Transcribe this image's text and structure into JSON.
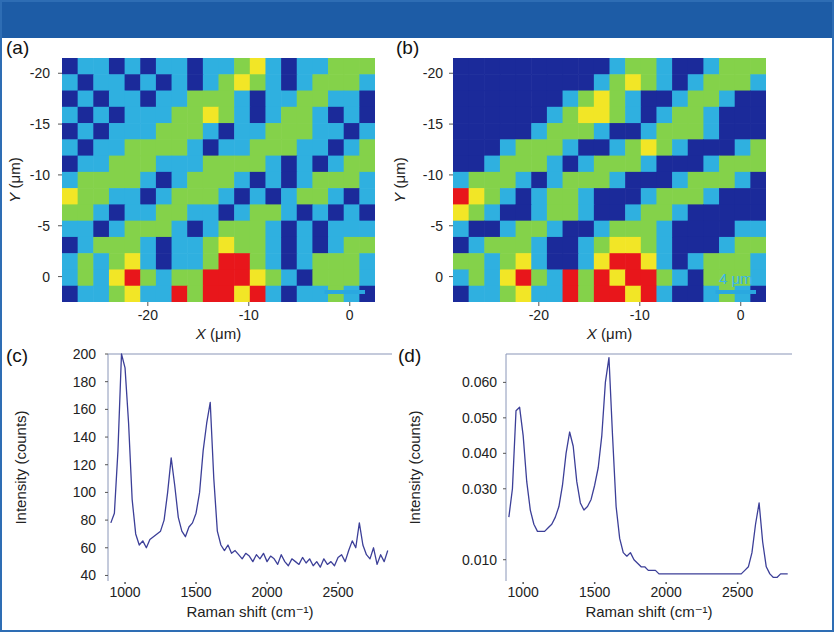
{
  "chart_data": [
    {
      "type": "heatmap",
      "panel_label": "(a)",
      "xlabel": "X (μm)",
      "ylabel": "Y (μm)",
      "xlim": [
        -28.5,
        2.5
      ],
      "ylim": [
        -21.5,
        2.5
      ],
      "xticks": [
        -20,
        -10,
        0
      ],
      "yticks": [
        -20,
        -15,
        -10,
        -5,
        0
      ],
      "colors": [
        "#1b2a9a",
        "#2fb0e0",
        "#84d24a",
        "#f2e626",
        "#e8161b"
      ],
      "cells": [
        [
          0,
          1,
          1,
          0,
          1,
          0,
          1,
          1,
          0,
          1,
          1,
          2,
          3,
          1,
          0,
          1,
          1,
          2,
          2,
          2
        ],
        [
          1,
          0,
          1,
          1,
          0,
          1,
          0,
          1,
          0,
          1,
          2,
          3,
          2,
          1,
          0,
          1,
          2,
          2,
          2,
          1
        ],
        [
          0,
          1,
          0,
          1,
          1,
          0,
          1,
          1,
          2,
          2,
          2,
          1,
          0,
          1,
          1,
          2,
          2,
          1,
          1,
          0
        ],
        [
          1,
          0,
          1,
          0,
          1,
          1,
          1,
          2,
          2,
          3,
          2,
          1,
          0,
          1,
          2,
          2,
          1,
          0,
          1,
          0
        ],
        [
          0,
          1,
          0,
          1,
          1,
          1,
          2,
          2,
          2,
          1,
          0,
          1,
          1,
          2,
          2,
          2,
          1,
          1,
          0,
          1
        ],
        [
          1,
          0,
          1,
          1,
          2,
          2,
          2,
          2,
          1,
          0,
          1,
          1,
          2,
          2,
          2,
          1,
          1,
          0,
          1,
          2
        ],
        [
          0,
          1,
          1,
          2,
          2,
          2,
          1,
          1,
          1,
          2,
          2,
          2,
          2,
          1,
          0,
          1,
          0,
          1,
          2,
          2
        ],
        [
          1,
          2,
          2,
          2,
          2,
          1,
          0,
          1,
          2,
          2,
          2,
          1,
          0,
          1,
          0,
          1,
          2,
          2,
          2,
          1
        ],
        [
          3,
          2,
          2,
          1,
          1,
          0,
          1,
          2,
          2,
          2,
          1,
          0,
          1,
          0,
          1,
          2,
          2,
          1,
          0,
          1
        ],
        [
          2,
          2,
          1,
          0,
          1,
          1,
          2,
          2,
          1,
          1,
          0,
          1,
          2,
          2,
          1,
          0,
          1,
          0,
          1,
          0
        ],
        [
          1,
          1,
          0,
          1,
          2,
          2,
          2,
          1,
          0,
          1,
          2,
          2,
          2,
          1,
          0,
          1,
          0,
          1,
          1,
          1
        ],
        [
          0,
          1,
          2,
          2,
          2,
          1,
          0,
          1,
          1,
          2,
          3,
          2,
          2,
          1,
          0,
          1,
          0,
          1,
          2,
          2
        ],
        [
          1,
          2,
          1,
          2,
          3,
          1,
          0,
          1,
          1,
          2,
          4,
          4,
          2,
          1,
          0,
          1,
          2,
          2,
          2,
          1
        ],
        [
          1,
          2,
          1,
          3,
          4,
          2,
          1,
          2,
          2,
          4,
          4,
          4,
          3,
          2,
          1,
          0,
          2,
          2,
          2,
          1
        ],
        [
          0,
          1,
          1,
          2,
          3,
          1,
          1,
          4,
          2,
          4,
          4,
          3,
          4,
          1,
          0,
          1,
          1,
          2,
          1,
          0
        ]
      ],
      "scale_bar": {
        "length": 4
      }
    },
    {
      "type": "heatmap",
      "panel_label": "(b)",
      "xlabel": "X (μm)",
      "ylabel": "Y (μm)",
      "xlim": [
        -28.5,
        2.5
      ],
      "ylim": [
        -21.5,
        2.5
      ],
      "xticks": [
        -20,
        -10,
        0
      ],
      "yticks": [
        -20,
        -15,
        -10,
        -5,
        0
      ],
      "colors": [
        "#1b2a9a",
        "#2fb0e0",
        "#84d24a",
        "#f2e626",
        "#e8161b"
      ],
      "cells": [
        [
          0,
          0,
          0,
          0,
          0,
          0,
          0,
          0,
          0,
          0,
          1,
          2,
          2,
          1,
          0,
          0,
          1,
          2,
          2,
          2
        ],
        [
          0,
          0,
          0,
          0,
          0,
          0,
          0,
          0,
          0,
          1,
          2,
          3,
          2,
          1,
          0,
          1,
          2,
          2,
          2,
          1
        ],
        [
          0,
          0,
          0,
          0,
          0,
          0,
          0,
          1,
          2,
          3,
          2,
          1,
          0,
          0,
          1,
          2,
          2,
          1,
          0,
          0
        ],
        [
          0,
          0,
          0,
          0,
          0,
          0,
          1,
          2,
          3,
          3,
          2,
          1,
          0,
          1,
          2,
          2,
          1,
          0,
          0,
          0
        ],
        [
          0,
          0,
          0,
          0,
          0,
          1,
          2,
          2,
          2,
          1,
          0,
          0,
          1,
          2,
          2,
          2,
          1,
          0,
          0,
          0
        ],
        [
          0,
          0,
          0,
          1,
          2,
          2,
          2,
          1,
          0,
          0,
          1,
          2,
          3,
          2,
          1,
          0,
          0,
          0,
          1,
          2
        ],
        [
          0,
          0,
          1,
          2,
          2,
          2,
          1,
          0,
          1,
          2,
          2,
          2,
          1,
          0,
          0,
          0,
          1,
          2,
          2,
          2
        ],
        [
          1,
          2,
          2,
          2,
          1,
          0,
          1,
          2,
          2,
          2,
          1,
          0,
          0,
          0,
          1,
          2,
          2,
          2,
          1,
          0
        ],
        [
          4,
          3,
          2,
          1,
          0,
          1,
          2,
          2,
          1,
          0,
          0,
          0,
          1,
          2,
          2,
          2,
          1,
          0,
          0,
          0
        ],
        [
          3,
          2,
          1,
          0,
          0,
          1,
          2,
          2,
          1,
          0,
          0,
          1,
          2,
          2,
          1,
          0,
          0,
          0,
          0,
          0
        ],
        [
          1,
          0,
          0,
          1,
          2,
          2,
          1,
          0,
          0,
          1,
          2,
          2,
          2,
          1,
          0,
          0,
          0,
          0,
          1,
          1
        ],
        [
          0,
          1,
          2,
          2,
          2,
          1,
          0,
          0,
          1,
          2,
          3,
          3,
          2,
          1,
          0,
          0,
          0,
          1,
          2,
          2
        ],
        [
          2,
          2,
          1,
          2,
          3,
          1,
          0,
          0,
          1,
          3,
          4,
          4,
          3,
          1,
          0,
          1,
          2,
          2,
          2,
          1
        ],
        [
          1,
          2,
          1,
          3,
          4,
          2,
          1,
          4,
          2,
          4,
          3,
          4,
          4,
          2,
          1,
          0,
          2,
          2,
          2,
          1
        ],
        [
          0,
          1,
          1,
          2,
          3,
          1,
          1,
          4,
          2,
          4,
          4,
          3,
          4,
          1,
          0,
          0,
          1,
          2,
          1,
          0
        ]
      ],
      "scale_bar": {
        "length": 4,
        "label": "4 μm"
      }
    },
    {
      "type": "line",
      "panel_label": "(c)",
      "xlabel": "Raman shift (cm⁻¹)",
      "ylabel": "Intensity (counts)",
      "xlim": [
        880,
        2880
      ],
      "ylim": [
        36,
        200
      ],
      "xticks": [
        1000,
        1500,
        2000,
        2500
      ],
      "yticks": [
        40,
        60,
        80,
        100,
        120,
        140,
        160,
        180,
        200
      ],
      "x": [
        900,
        925,
        950,
        975,
        1000,
        1025,
        1050,
        1075,
        1100,
        1125,
        1150,
        1175,
        1200,
        1225,
        1250,
        1275,
        1300,
        1325,
        1350,
        1375,
        1400,
        1425,
        1450,
        1475,
        1500,
        1525,
        1550,
        1575,
        1600,
        1625,
        1650,
        1675,
        1700,
        1725,
        1750,
        1775,
        1800,
        1825,
        1850,
        1875,
        1900,
        1925,
        1950,
        1975,
        2000,
        2025,
        2050,
        2075,
        2100,
        2125,
        2150,
        2175,
        2200,
        2225,
        2250,
        2275,
        2300,
        2325,
        2350,
        2375,
        2400,
        2425,
        2450,
        2475,
        2500,
        2525,
        2550,
        2575,
        2600,
        2625,
        2650,
        2675,
        2700,
        2725,
        2750,
        2775,
        2800,
        2825,
        2850
      ],
      "series": [
        {
          "color": "#3c3f98",
          "values": [
            78,
            85,
            130,
            200,
            190,
            150,
            95,
            70,
            62,
            65,
            60,
            66,
            68,
            70,
            72,
            80,
            100,
            125,
            105,
            82,
            72,
            68,
            75,
            78,
            85,
            100,
            130,
            150,
            165,
            110,
            72,
            62,
            58,
            62,
            56,
            58,
            55,
            52,
            56,
            54,
            50,
            55,
            52,
            56,
            50,
            54,
            52,
            48,
            55,
            50,
            47,
            52,
            50,
            48,
            53,
            49,
            52,
            47,
            50,
            46,
            52,
            48,
            50,
            47,
            53,
            55,
            50,
            58,
            65,
            60,
            78,
            62,
            55,
            52,
            60,
            48,
            55,
            50,
            58
          ]
        }
      ]
    },
    {
      "type": "line",
      "panel_label": "(d)",
      "xlabel": "Raman shift (cm⁻¹)",
      "ylabel": "Intensity (counts)",
      "xlim": [
        880,
        2880
      ],
      "ylim": [
        0.004,
        0.068
      ],
      "xticks": [
        1000,
        1500,
        2000,
        2500
      ],
      "yticks": [
        {
          "value": 0.01,
          "label": "0.010"
        },
        {
          "value": 0.03,
          "label": "0.030"
        },
        {
          "value": 0.04,
          "label": "0.040"
        },
        {
          "value": 0.05,
          "label": "0.050"
        },
        {
          "value": 0.06,
          "label": "0.060"
        }
      ],
      "x": [
        900,
        925,
        950,
        975,
        1000,
        1025,
        1050,
        1075,
        1100,
        1125,
        1150,
        1175,
        1200,
        1225,
        1250,
        1275,
        1300,
        1325,
        1350,
        1375,
        1400,
        1425,
        1450,
        1475,
        1500,
        1525,
        1550,
        1575,
        1600,
        1625,
        1650,
        1675,
        1700,
        1725,
        1750,
        1775,
        1800,
        1825,
        1850,
        1875,
        1900,
        1925,
        1950,
        1975,
        2000,
        2025,
        2050,
        2075,
        2100,
        2125,
        2150,
        2175,
        2200,
        2225,
        2250,
        2275,
        2300,
        2325,
        2350,
        2375,
        2400,
        2425,
        2450,
        2475,
        2500,
        2525,
        2550,
        2575,
        2600,
        2625,
        2650,
        2675,
        2700,
        2725,
        2750,
        2775,
        2800,
        2825,
        2850
      ],
      "series": [
        {
          "color": "#3c3f98",
          "values": [
            0.022,
            0.03,
            0.052,
            0.053,
            0.045,
            0.032,
            0.024,
            0.02,
            0.018,
            0.018,
            0.018,
            0.019,
            0.02,
            0.022,
            0.025,
            0.031,
            0.04,
            0.046,
            0.042,
            0.032,
            0.026,
            0.024,
            0.025,
            0.027,
            0.031,
            0.036,
            0.045,
            0.06,
            0.067,
            0.045,
            0.025,
            0.016,
            0.012,
            0.011,
            0.012,
            0.01,
            0.009,
            0.008,
            0.008,
            0.007,
            0.007,
            0.007,
            0.006,
            0.006,
            0.006,
            0.006,
            0.006,
            0.006,
            0.006,
            0.006,
            0.006,
            0.006,
            0.006,
            0.006,
            0.006,
            0.006,
            0.006,
            0.006,
            0.006,
            0.006,
            0.006,
            0.006,
            0.006,
            0.006,
            0.006,
            0.006,
            0.007,
            0.008,
            0.012,
            0.02,
            0.026,
            0.015,
            0.008,
            0.006,
            0.005,
            0.005,
            0.006,
            0.006,
            0.006
          ]
        }
      ]
    }
  ]
}
